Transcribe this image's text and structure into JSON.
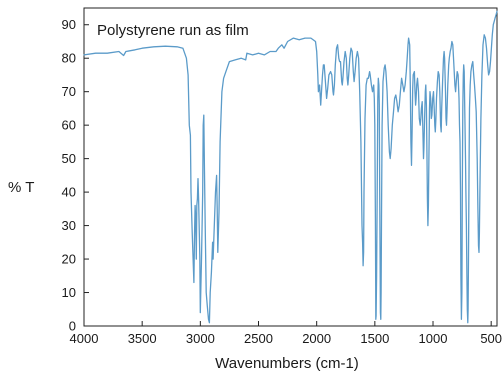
{
  "chart_data": {
    "type": "line",
    "title": "Polystyrene run as film",
    "xlabel": "Wavenumbers (cm-1)",
    "ylabel": "% T",
    "xlim": [
      4000,
      450
    ],
    "ylim": [
      0,
      95
    ],
    "x_ticks": [
      4000,
      3500,
      3000,
      2500,
      2000,
      1500,
      1000,
      500
    ],
    "y_ticks": [
      0,
      10,
      20,
      30,
      40,
      50,
      60,
      70,
      80,
      90
    ],
    "line_color": "#5b9bc9",
    "grid": false,
    "series": [
      {
        "name": "",
        "points": [
          [
            4000,
            81
          ],
          [
            3900,
            81.5
          ],
          [
            3800,
            81.5
          ],
          [
            3700,
            82
          ],
          [
            3660,
            80.8
          ],
          [
            3640,
            82
          ],
          [
            3560,
            82.5
          ],
          [
            3500,
            83
          ],
          [
            3400,
            83.4
          ],
          [
            3300,
            83.6
          ],
          [
            3200,
            83.4
          ],
          [
            3150,
            83
          ],
          [
            3120,
            80
          ],
          [
            3105,
            75
          ],
          [
            3095,
            60
          ],
          [
            3085,
            57
          ],
          [
            3080,
            40
          ],
          [
            3070,
            28
          ],
          [
            3062,
            20
          ],
          [
            3055,
            13
          ],
          [
            3050,
            27
          ],
          [
            3045,
            36
          ],
          [
            3040,
            32
          ],
          [
            3035,
            20
          ],
          [
            3030,
            36
          ],
          [
            3025,
            38
          ],
          [
            3020,
            44
          ],
          [
            3015,
            38
          ],
          [
            3005,
            21
          ],
          [
            3000,
            4
          ],
          [
            2990,
            20
          ],
          [
            2980,
            40
          ],
          [
            2975,
            60
          ],
          [
            2970,
            63
          ],
          [
            2965,
            48
          ],
          [
            2958,
            30
          ],
          [
            2950,
            10
          ],
          [
            2940,
            6
          ],
          [
            2930,
            2
          ],
          [
            2922,
            1
          ],
          [
            2915,
            10
          ],
          [
            2905,
            16
          ],
          [
            2895,
            25
          ],
          [
            2890,
            20
          ],
          [
            2880,
            30
          ],
          [
            2870,
            40
          ],
          [
            2860,
            45
          ],
          [
            2855,
            35
          ],
          [
            2850,
            22
          ],
          [
            2840,
            34
          ],
          [
            2830,
            55
          ],
          [
            2815,
            70
          ],
          [
            2800,
            74
          ],
          [
            2780,
            76
          ],
          [
            2750,
            79
          ],
          [
            2700,
            79.5
          ],
          [
            2650,
            80
          ],
          [
            2610,
            79.5
          ],
          [
            2600,
            81.5
          ],
          [
            2550,
            81
          ],
          [
            2500,
            81.5
          ],
          [
            2450,
            81
          ],
          [
            2400,
            82
          ],
          [
            2350,
            82
          ],
          [
            2330,
            83
          ],
          [
            2300,
            84
          ],
          [
            2280,
            83
          ],
          [
            2250,
            85
          ],
          [
            2200,
            86
          ],
          [
            2150,
            85.5
          ],
          [
            2100,
            86
          ],
          [
            2050,
            86
          ],
          [
            2010,
            85
          ],
          [
            2000,
            82
          ],
          [
            1990,
            75
          ],
          [
            1985,
            70
          ],
          [
            1975,
            72
          ],
          [
            1965,
            66
          ],
          [
            1960,
            69
          ],
          [
            1950,
            75
          ],
          [
            1942,
            78
          ],
          [
            1935,
            78
          ],
          [
            1925,
            73
          ],
          [
            1915,
            68
          ],
          [
            1905,
            71
          ],
          [
            1895,
            75
          ],
          [
            1880,
            76
          ],
          [
            1870,
            75
          ],
          [
            1860,
            70
          ],
          [
            1855,
            69
          ],
          [
            1848,
            72
          ],
          [
            1840,
            78
          ],
          [
            1830,
            83
          ],
          [
            1820,
            84
          ],
          [
            1810,
            80
          ],
          [
            1803,
            79
          ],
          [
            1795,
            79
          ],
          [
            1785,
            73
          ],
          [
            1780,
            72
          ],
          [
            1775,
            74
          ],
          [
            1765,
            79
          ],
          [
            1755,
            82
          ],
          [
            1745,
            80
          ],
          [
            1738,
            74
          ],
          [
            1732,
            72
          ],
          [
            1725,
            75
          ],
          [
            1715,
            80
          ],
          [
            1705,
            83
          ],
          [
            1695,
            82
          ],
          [
            1685,
            76
          ],
          [
            1678,
            73
          ],
          [
            1670,
            76
          ],
          [
            1660,
            80
          ],
          [
            1650,
            82
          ],
          [
            1640,
            80
          ],
          [
            1630,
            70
          ],
          [
            1620,
            55
          ],
          [
            1610,
            30
          ],
          [
            1605,
            25
          ],
          [
            1601,
            18
          ],
          [
            1597,
            22
          ],
          [
            1593,
            40
          ],
          [
            1585,
            62
          ],
          [
            1575,
            72
          ],
          [
            1565,
            74
          ],
          [
            1555,
            74
          ],
          [
            1545,
            76
          ],
          [
            1540,
            75
          ],
          [
            1530,
            72
          ],
          [
            1520,
            70
          ],
          [
            1510,
            72
          ],
          [
            1505,
            68
          ],
          [
            1500,
            60
          ],
          [
            1495,
            32
          ],
          [
            1493,
            12
          ],
          [
            1492,
            2
          ],
          [
            1489,
            3
          ],
          [
            1485,
            15
          ],
          [
            1480,
            40
          ],
          [
            1475,
            68
          ],
          [
            1470,
            74
          ],
          [
            1465,
            72
          ],
          [
            1462,
            66
          ],
          [
            1458,
            40
          ],
          [
            1455,
            20
          ],
          [
            1452,
            4
          ],
          [
            1449,
            2
          ],
          [
            1446,
            10
          ],
          [
            1443,
            32
          ],
          [
            1438,
            60
          ],
          [
            1430,
            73
          ],
          [
            1420,
            77
          ],
          [
            1412,
            78
          ],
          [
            1405,
            76
          ],
          [
            1395,
            70
          ],
          [
            1385,
            60
          ],
          [
            1375,
            52
          ],
          [
            1368,
            50
          ],
          [
            1360,
            53
          ],
          [
            1350,
            60
          ],
          [
            1340,
            64
          ],
          [
            1330,
            68
          ],
          [
            1320,
            69
          ],
          [
            1310,
            67
          ],
          [
            1300,
            64
          ],
          [
            1290,
            66
          ],
          [
            1280,
            70
          ],
          [
            1270,
            74
          ],
          [
            1260,
            72
          ],
          [
            1250,
            70
          ],
          [
            1240,
            72
          ],
          [
            1230,
            76
          ],
          [
            1222,
            80
          ],
          [
            1215,
            84
          ],
          [
            1210,
            86
          ],
          [
            1200,
            84
          ],
          [
            1195,
            72
          ],
          [
            1190,
            55
          ],
          [
            1185,
            48
          ],
          [
            1180,
            58
          ],
          [
            1175,
            71
          ],
          [
            1170,
            75
          ],
          [
            1160,
            76
          ],
          [
            1155,
            70
          ],
          [
            1150,
            66
          ],
          [
            1145,
            68
          ],
          [
            1140,
            72
          ],
          [
            1133,
            74
          ],
          [
            1125,
            70
          ],
          [
            1118,
            62
          ],
          [
            1110,
            60
          ],
          [
            1105,
            62
          ],
          [
            1100,
            65
          ],
          [
            1093,
            67
          ],
          [
            1087,
            58
          ],
          [
            1082,
            50
          ],
          [
            1078,
            53
          ],
          [
            1072,
            62
          ],
          [
            1066,
            70
          ],
          [
            1062,
            72
          ],
          [
            1057,
            66
          ],
          [
            1052,
            50
          ],
          [
            1048,
            38
          ],
          [
            1044,
            30
          ],
          [
            1040,
            36
          ],
          [
            1035,
            50
          ],
          [
            1030,
            65
          ],
          [
            1026,
            70
          ],
          [
            1020,
            68
          ],
          [
            1015,
            62
          ],
          [
            1010,
            63
          ],
          [
            1003,
            68
          ],
          [
            996,
            70
          ],
          [
            990,
            65
          ],
          [
            985,
            60
          ],
          [
            980,
            58
          ],
          [
            975,
            62
          ],
          [
            970,
            68
          ],
          [
            962,
            73
          ],
          [
            955,
            76
          ],
          [
            948,
            75
          ],
          [
            942,
            70
          ],
          [
            935,
            60
          ],
          [
            930,
            58
          ],
          [
            925,
            65
          ],
          [
            918,
            73
          ],
          [
            910,
            80
          ],
          [
            905,
            82
          ],
          [
            900,
            80
          ],
          [
            893,
            70
          ],
          [
            888,
            62
          ],
          [
            884,
            60
          ],
          [
            880,
            64
          ],
          [
            873,
            72
          ],
          [
            865,
            78
          ],
          [
            860,
            80
          ],
          [
            852,
            82
          ],
          [
            845,
            83
          ],
          [
            838,
            85
          ],
          [
            830,
            84
          ],
          [
            822,
            79
          ],
          [
            812,
            72
          ],
          [
            806,
            70
          ],
          [
            800,
            73
          ],
          [
            792,
            76
          ],
          [
            784,
            75
          ],
          [
            777,
            68
          ],
          [
            772,
            60
          ],
          [
            768,
            55
          ],
          [
            764,
            40
          ],
          [
            760,
            15
          ],
          [
            756,
            2
          ],
          [
            752,
            10
          ],
          [
            748,
            40
          ],
          [
            744,
            65
          ],
          [
            740,
            75
          ],
          [
            736,
            78
          ],
          [
            732,
            76
          ],
          [
            726,
            62
          ],
          [
            721,
            50
          ],
          [
            717,
            40
          ],
          [
            713,
            30
          ],
          [
            709,
            15
          ],
          [
            705,
            5
          ],
          [
            701,
            1
          ],
          [
            698,
            5
          ],
          [
            694,
            25
          ],
          [
            690,
            50
          ],
          [
            686,
            65
          ],
          [
            680,
            72
          ],
          [
            674,
            76
          ],
          [
            666,
            78
          ],
          [
            658,
            79
          ],
          [
            650,
            75
          ],
          [
            643,
            72
          ],
          [
            636,
            68
          ],
          [
            629,
            64
          ],
          [
            620,
            50
          ],
          [
            614,
            35
          ],
          [
            609,
            24
          ],
          [
            605,
            22
          ],
          [
            601,
            28
          ],
          [
            595,
            45
          ],
          [
            588,
            62
          ],
          [
            580,
            75
          ],
          [
            570,
            84
          ],
          [
            560,
            87
          ],
          [
            550,
            86
          ],
          [
            540,
            83
          ],
          [
            530,
            78
          ],
          [
            522,
            75
          ],
          [
            514,
            76
          ],
          [
            506,
            79
          ],
          [
            498,
            83
          ],
          [
            490,
            87
          ],
          [
            482,
            90
          ],
          [
            474,
            91
          ],
          [
            466,
            92
          ],
          [
            458,
            93
          ],
          [
            450,
            94
          ]
        ]
      }
    ]
  }
}
